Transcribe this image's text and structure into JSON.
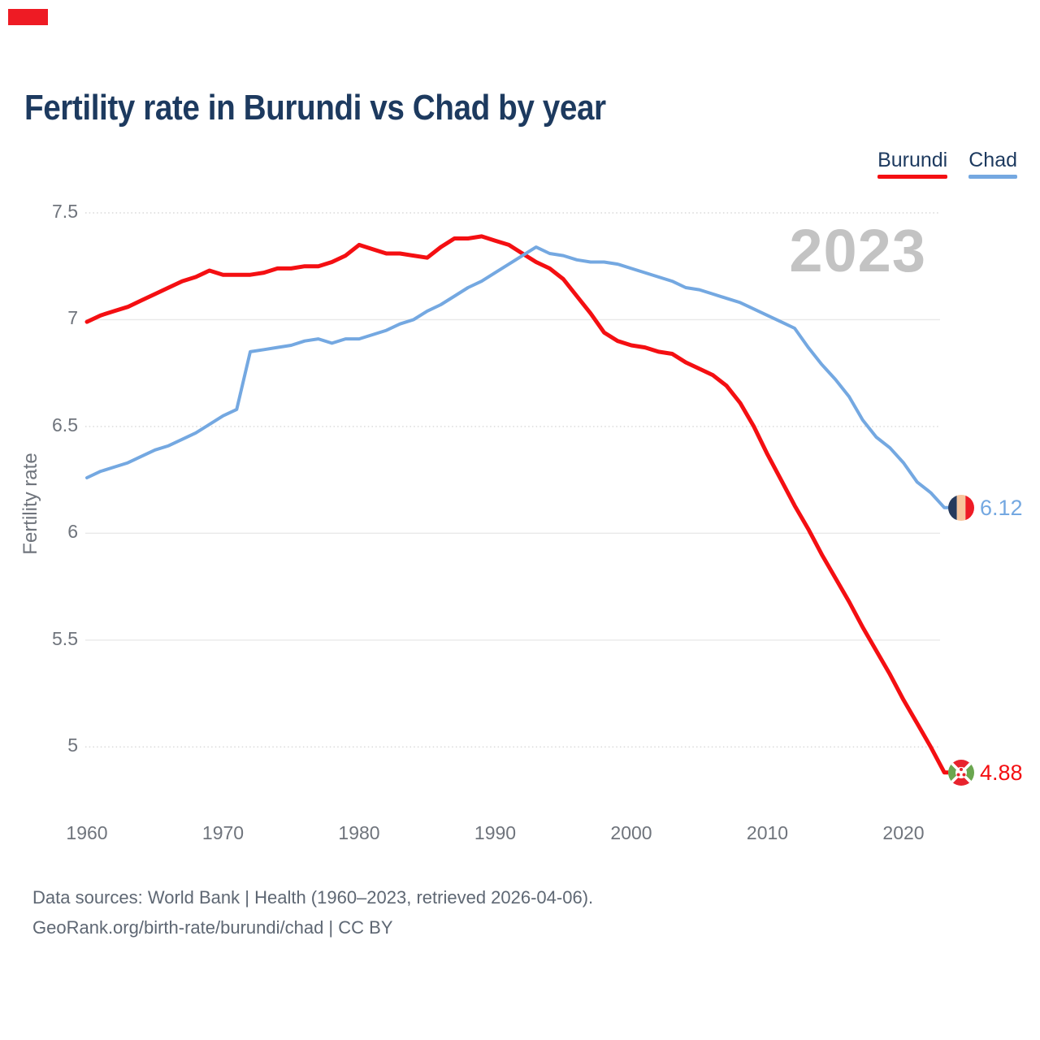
{
  "header": {
    "title": "Fertility rate in Burundi vs Chad by year"
  },
  "legend": {
    "items": [
      {
        "label": "Burundi",
        "color": "#f40f12"
      },
      {
        "label": "Chad",
        "color": "#74a8e1"
      }
    ]
  },
  "footer": {
    "line1": "Data sources: World Bank | Health (1960–2023, retrieved 2026-04-06).",
    "line2": "GeoRank.org/birth-rate/burundi/chad | CC BY"
  },
  "colors": {
    "title_navy": "#1d3a5f",
    "burundi_red": "#f40f12",
    "chad_blue": "#74a8e1",
    "watermark_gray": "#c3c3c3",
    "tick_gray": "#6f747c"
  },
  "chart_data": {
    "type": "line",
    "title": "Fertility rate in Burundi vs Chad by year",
    "xlabel": "",
    "ylabel": "Fertility rate",
    "watermark": "2023",
    "grid": true,
    "legend_position": "top-right",
    "ylim": [
      4.75,
      7.55
    ],
    "yticks": [
      5,
      5.5,
      6,
      6.5,
      7,
      7.5
    ],
    "dotted_gridlines": [
      7.5,
      6.5,
      5
    ],
    "xticks": [
      1960,
      1970,
      1980,
      1990,
      2000,
      2010,
      2020
    ],
    "x": [
      1960,
      1961,
      1962,
      1963,
      1964,
      1965,
      1966,
      1967,
      1968,
      1969,
      1970,
      1971,
      1972,
      1973,
      1974,
      1975,
      1976,
      1977,
      1978,
      1979,
      1980,
      1981,
      1982,
      1983,
      1984,
      1985,
      1986,
      1987,
      1988,
      1989,
      1990,
      1991,
      1992,
      1993,
      1994,
      1995,
      1996,
      1997,
      1998,
      1999,
      2000,
      2001,
      2002,
      2003,
      2004,
      2005,
      2006,
      2007,
      2008,
      2009,
      2010,
      2011,
      2012,
      2013,
      2014,
      2015,
      2016,
      2017,
      2018,
      2019,
      2020,
      2021,
      2022,
      2023
    ],
    "series": [
      {
        "name": "Burundi",
        "color": "#f40f12",
        "end_label": "4.88",
        "values": [
          6.99,
          7.02,
          7.04,
          7.06,
          7.09,
          7.12,
          7.15,
          7.18,
          7.2,
          7.23,
          7.21,
          7.21,
          7.21,
          7.22,
          7.24,
          7.24,
          7.25,
          7.25,
          7.27,
          7.3,
          7.35,
          7.33,
          7.31,
          7.31,
          7.3,
          7.29,
          7.34,
          7.38,
          7.38,
          7.39,
          7.37,
          7.35,
          7.31,
          7.27,
          7.24,
          7.19,
          7.11,
          7.03,
          6.94,
          6.9,
          6.88,
          6.87,
          6.85,
          6.84,
          6.8,
          6.77,
          6.74,
          6.69,
          6.61,
          6.5,
          6.37,
          6.25,
          6.13,
          6.02,
          5.9,
          5.79,
          5.68,
          5.56,
          5.45,
          5.34,
          5.22,
          5.11,
          5.0,
          4.88
        ]
      },
      {
        "name": "Chad",
        "color": "#74a8e1",
        "end_label": "6.12",
        "values": [
          6.26,
          6.29,
          6.31,
          6.33,
          6.36,
          6.39,
          6.41,
          6.44,
          6.47,
          6.51,
          6.55,
          6.58,
          6.85,
          6.86,
          6.87,
          6.88,
          6.9,
          6.91,
          6.89,
          6.91,
          6.91,
          6.93,
          6.95,
          6.98,
          7.0,
          7.04,
          7.07,
          7.11,
          7.15,
          7.18,
          7.22,
          7.26,
          7.3,
          7.34,
          7.31,
          7.3,
          7.28,
          7.27,
          7.27,
          7.26,
          7.24,
          7.22,
          7.2,
          7.18,
          7.15,
          7.14,
          7.12,
          7.1,
          7.08,
          7.05,
          7.02,
          6.99,
          6.96,
          6.87,
          6.79,
          6.72,
          6.64,
          6.53,
          6.45,
          6.4,
          6.33,
          6.24,
          6.19,
          6.12
        ]
      }
    ]
  }
}
